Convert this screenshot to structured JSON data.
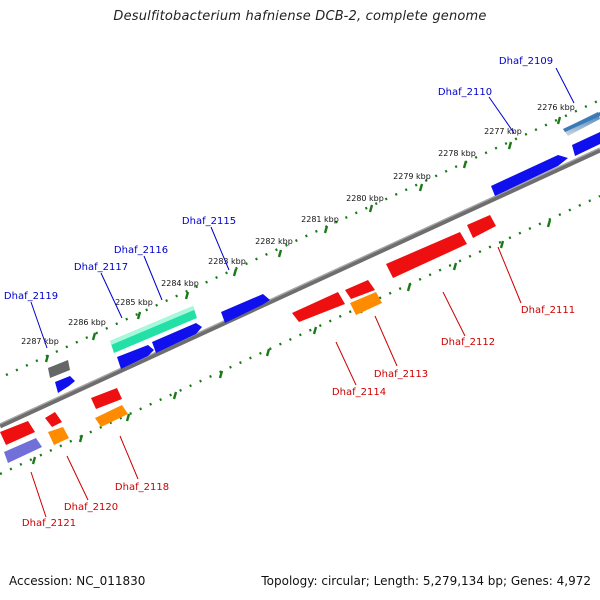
{
  "title": "Desulfitobacterium hafniense DCB-2, complete genome",
  "footer": {
    "accession": "Accession: NC_011830",
    "summary": "Topology: circular; Length: 5,279,134 bp; Genes: 4,972"
  },
  "colors": {
    "backbone": "#808080",
    "tick": "#1a7a1a",
    "forward_label": "#0000cc",
    "reverse_label": "#cc0000",
    "gene_blue": "#1010ee",
    "gene_red": "#ee1010",
    "gene_orange": "#ff8c00",
    "gene_teal": "#22e0a6",
    "gene_gray": "#666666",
    "gene_slate": "#7070d8",
    "gene_steel": "#3a7ab8"
  },
  "scale_labels": [
    "2276 kbp",
    "2277 kbp",
    "2278 kbp",
    "2279 kbp",
    "2280 kbp",
    "2281 kbp",
    "2282 kbp",
    "2283 kbp",
    "2284 kbp",
    "2285 kbp",
    "2286 kbp",
    "2287 kbp"
  ],
  "forward_genes": [
    "Dhaf_2109",
    "Dhaf_2110",
    "Dhaf_2115",
    "Dhaf_2116",
    "Dhaf_2117",
    "Dhaf_2119"
  ],
  "reverse_genes": [
    "Dhaf_2111",
    "Dhaf_2112",
    "Dhaf_2113",
    "Dhaf_2114",
    "Dhaf_2118",
    "Dhaf_2120",
    "Dhaf_2121"
  ]
}
